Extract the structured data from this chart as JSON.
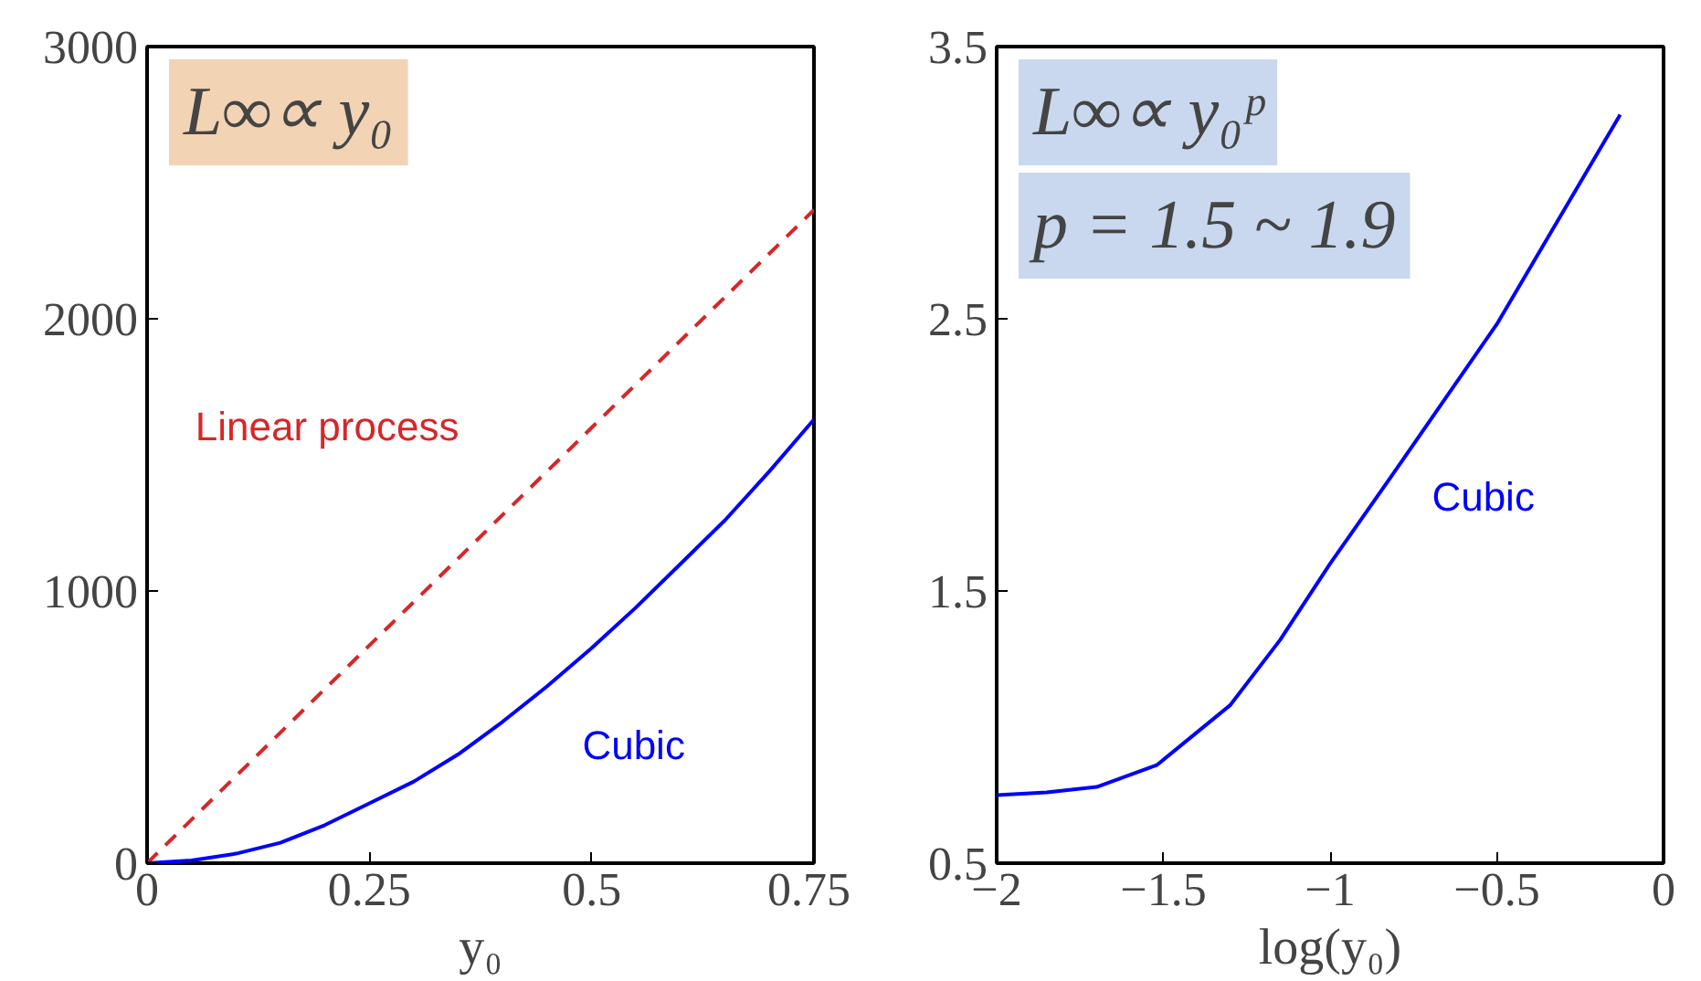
{
  "chart_data": [
    {
      "type": "line",
      "xlabel": "y₀",
      "x": [
        0,
        0.05,
        0.1,
        0.15,
        0.2,
        0.25,
        0.3,
        0.35,
        0.4,
        0.45,
        0.5,
        0.55,
        0.6,
        0.65,
        0.7,
        0.75
      ],
      "series": [
        {
          "name": "Linear process",
          "color": "#d62728",
          "line_style": "dashed",
          "x": [
            0,
            0.75
          ],
          "values": [
            0,
            2400
          ]
        },
        {
          "name": "Cubic",
          "color": "#0000ff",
          "line_style": "solid",
          "values": [
            0,
            10,
            35,
            75,
            140,
            220,
            300,
            400,
            520,
            650,
            790,
            940,
            1100,
            1260,
            1440,
            1630
          ]
        }
      ],
      "annotations": [
        "L∞∝ y₀"
      ],
      "xlim": [
        0,
        0.75
      ],
      "ylim": [
        0,
        3000
      ],
      "xticks": [
        0,
        0.25,
        0.5,
        0.75
      ],
      "yticks": [
        0,
        1000,
        2000,
        3000
      ],
      "grid": false,
      "legend": false
    },
    {
      "type": "line",
      "xlabel": "log(y₀)",
      "x": [
        -2,
        -1.85,
        -1.7,
        -1.52,
        -1.3,
        -1.15,
        -1,
        -0.8,
        -0.5,
        -0.13
      ],
      "series": [
        {
          "name": "Cubic",
          "color": "#0000ff",
          "line_style": "solid",
          "values": [
            0.75,
            0.76,
            0.78,
            0.86,
            1.08,
            1.32,
            1.6,
            1.95,
            2.48,
            3.25
          ]
        }
      ],
      "annotations": [
        "L∞∝ y₀ᵖ",
        "p = 1.5 ~ 1.9"
      ],
      "xlim": [
        -2,
        0
      ],
      "ylim": [
        0.5,
        3.5
      ],
      "xticks": [
        {
          "value": -2,
          "label": "−2"
        },
        {
          "value": -1.5,
          "label": "−1.5"
        },
        {
          "value": -1,
          "label": "−1"
        },
        {
          "value": -0.5,
          "label": "−0.5"
        },
        0
      ],
      "yticks": [
        0.5,
        1.5,
        2.5,
        3.5
      ],
      "grid": false,
      "legend": false
    }
  ]
}
